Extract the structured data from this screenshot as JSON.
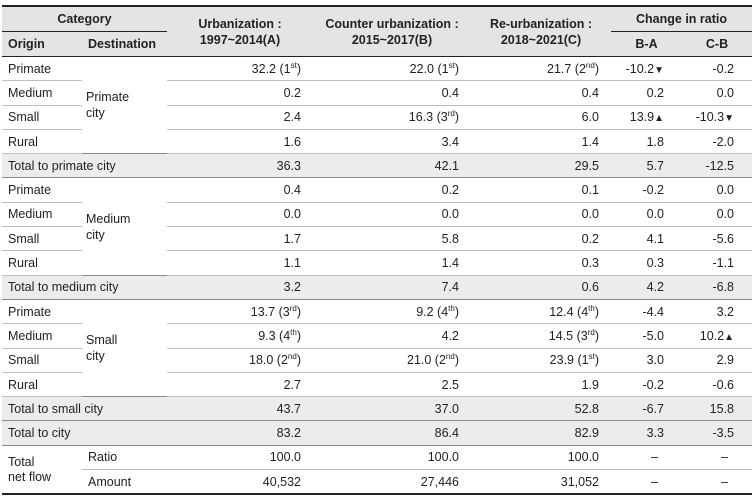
{
  "header": {
    "category": "Category",
    "origin": "Origin",
    "destination": "Destination",
    "col_a_line1": "Urbanization :",
    "col_a_line2": "1997~2014(A)",
    "col_b_line1": "Counter urbanization :",
    "col_b_line2": "2015~2017(B)",
    "col_c_line1": "Re-urbanization :",
    "col_c_line2": "2018~2021(C)",
    "change": "Change in ratio",
    "ba": "B-A",
    "cb": "C-B"
  },
  "groups": {
    "primate": {
      "dest_line1": "Primate",
      "dest_line2": "city",
      "rows": [
        {
          "origin": "Primate",
          "a": "32.2 (1",
          "a_sup": "st",
          "a_end": ")",
          "b": "22.0 (1",
          "b_sup": "st",
          "b_end": ")",
          "c": "21.7 (2",
          "c_sup": "nd",
          "c_end": ")",
          "ba": "-10.2",
          "ba_mark": "▼",
          "cb": "-0.2",
          "cb_mark": ""
        },
        {
          "origin": "Medium",
          "a": "0.2",
          "b": "0.4",
          "c": "0.4",
          "ba": "0.2",
          "cb": "0.0"
        },
        {
          "origin": "Small",
          "a": "2.4",
          "b": "16.3 (3",
          "b_sup": "rd",
          "b_end": ")",
          "c": "6.0",
          "ba": "13.9",
          "ba_mark": "▲",
          "cb": "-10.3",
          "cb_mark": "▼"
        },
        {
          "origin": "Rural",
          "a": "1.6",
          "b": "3.4",
          "c": "1.4",
          "ba": "1.8",
          "cb": "-2.0"
        }
      ],
      "total": {
        "label": "Total to primate city",
        "a": "36.3",
        "b": "42.1",
        "c": "29.5",
        "ba": "5.7",
        "cb": "-12.5"
      }
    },
    "medium": {
      "dest_line1": "Medium",
      "dest_line2": "city",
      "rows": [
        {
          "origin": "Primate",
          "a": "0.4",
          "b": "0.2",
          "c": "0.1",
          "ba": "-0.2",
          "cb": "0.0"
        },
        {
          "origin": "Medium",
          "a": "0.0",
          "b": "0.0",
          "c": "0.0",
          "ba": "0.0",
          "cb": "0.0"
        },
        {
          "origin": "Small",
          "a": "1.7",
          "b": "5.8",
          "c": "0.2",
          "ba": "4.1",
          "cb": "-5.6"
        },
        {
          "origin": "Rural",
          "a": "1.1",
          "b": "1.4",
          "c": "0.3",
          "ba": "0.3",
          "cb": "-1.1"
        }
      ],
      "total": {
        "label": "Total to medium city",
        "a": "3.2",
        "b": "7.4",
        "c": "0.6",
        "ba": "4.2",
        "cb": "-6.8"
      }
    },
    "small": {
      "dest_line1": "Small",
      "dest_line2": "city",
      "rows": [
        {
          "origin": "Primate",
          "a": "13.7 (3",
          "a_sup": "rd",
          "a_end": ")",
          "b": "9.2 (4",
          "b_sup": "th",
          "b_end": ")",
          "c": "12.4 (4",
          "c_sup": "th",
          "c_end": ")",
          "ba": "-4.4",
          "cb": "3.2"
        },
        {
          "origin": "Medium",
          "a": "9.3 (4",
          "a_sup": "th",
          "a_end": ")",
          "b": "4.2",
          "c": "14.5 (3",
          "c_sup": "rd",
          "c_end": ")",
          "ba": "-5.0",
          "cb": "10.2",
          "cb_mark": "▲"
        },
        {
          "origin": "Small",
          "a": "18.0 (2",
          "a_sup": "nd",
          "a_end": ")",
          "b": "21.0 (2",
          "b_sup": "nd",
          "b_end": ")",
          "c": "23.9 (1",
          "c_sup": "st",
          "c_end": ")",
          "ba": "3.0",
          "cb": "2.9"
        },
        {
          "origin": "Rural",
          "a": "2.7",
          "b": "2.5",
          "c": "1.9",
          "ba": "-0.2",
          "cb": "-0.6"
        }
      ],
      "total": {
        "label": "Total to small city",
        "a": "43.7",
        "b": "37.0",
        "c": "52.8",
        "ba": "-6.7",
        "cb": "15.8"
      }
    }
  },
  "total_city": {
    "label": "Total to city",
    "a": "83.2",
    "b": "86.4",
    "c": "82.9",
    "ba": "3.3",
    "cb": "-3.5"
  },
  "net_flow": {
    "label_line1": "Total",
    "label_line2": "net flow",
    "ratio": {
      "label": "Ratio",
      "a": "100.0",
      "b": "100.0",
      "c": "100.0",
      "ba": "–",
      "cb": "–"
    },
    "amount": {
      "label": "Amount",
      "a": "40,532",
      "b": "27,446",
      "c": "31,052",
      "ba": "–",
      "cb": "–"
    }
  }
}
